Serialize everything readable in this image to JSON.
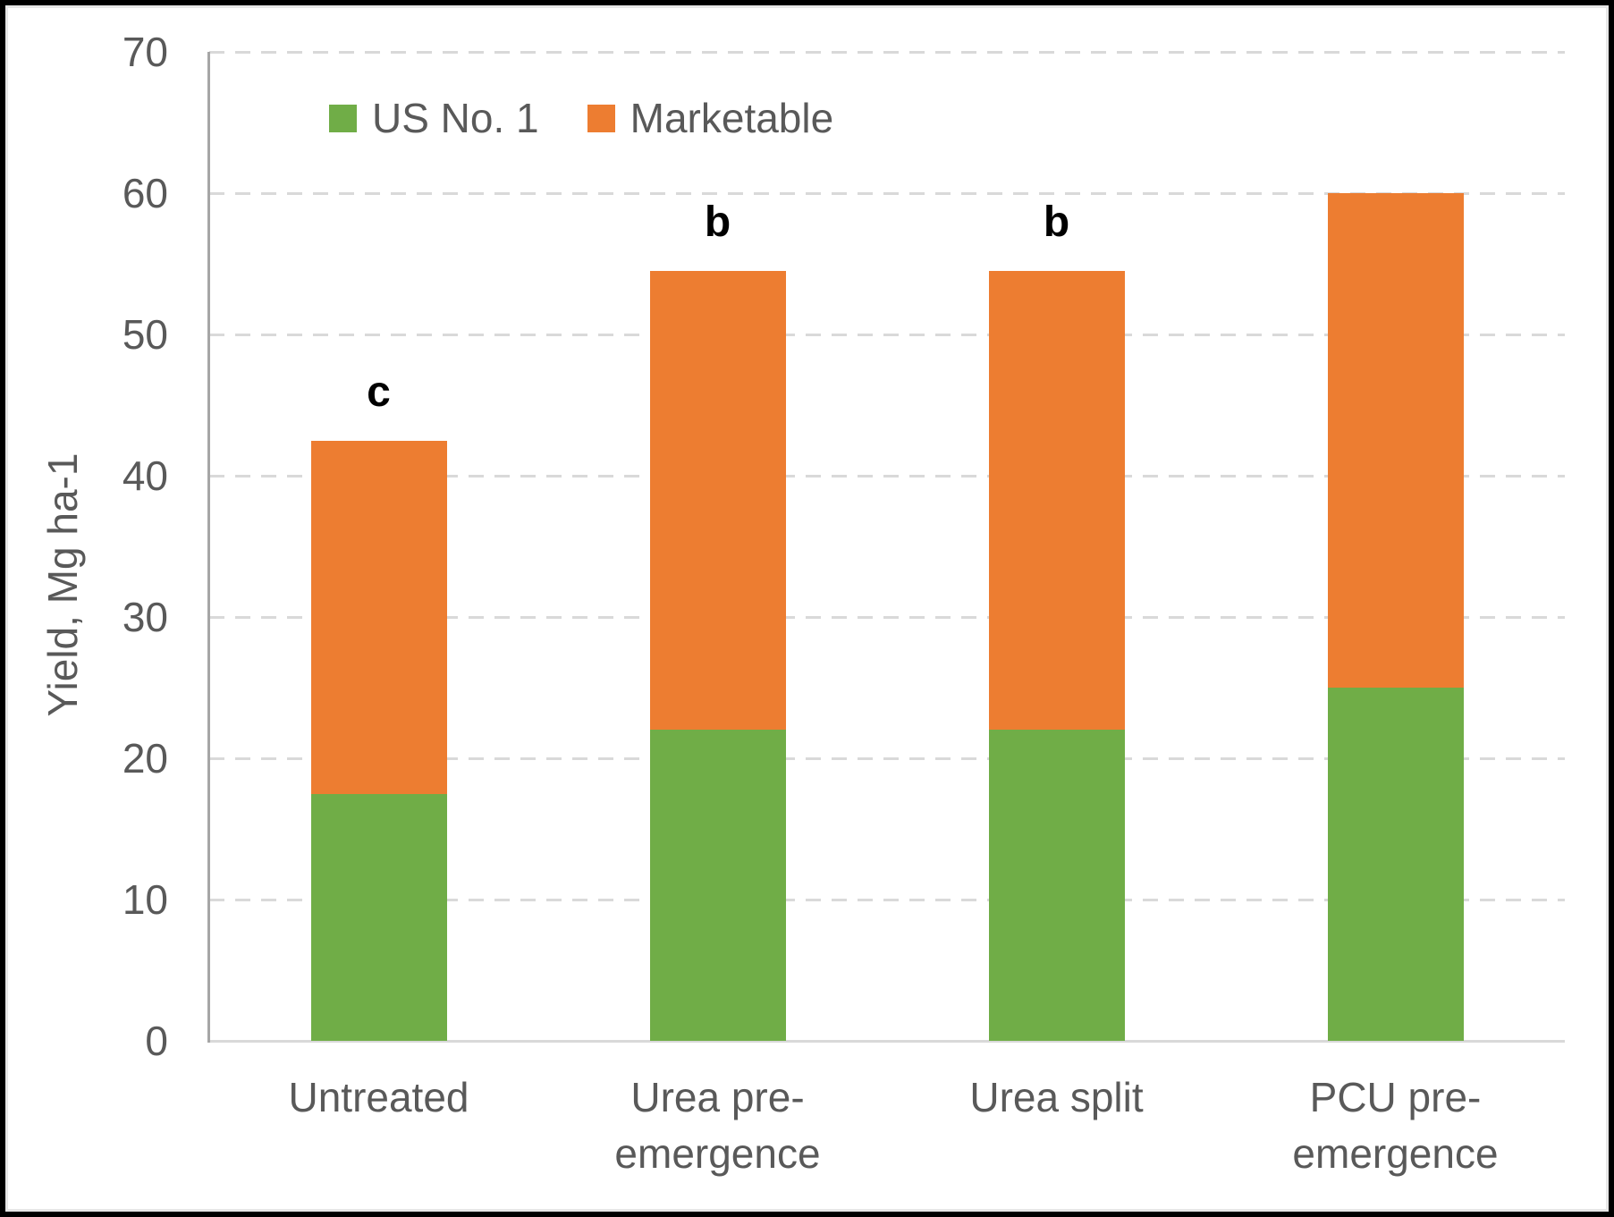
{
  "figure": {
    "type": "embedded-excel-chart",
    "background": "#ffffff",
    "frame_color": "#000000",
    "inner_frame_color": "#e7e7e7"
  },
  "legend": {
    "position": "top-left-of-plot",
    "entries": [
      {
        "label": "US No. 1",
        "color": "#70AD47"
      },
      {
        "label": "Marketable",
        "color": "#ED7D31"
      }
    ]
  },
  "y_axis": {
    "title": "Yield, Mg ha-1",
    "ticks": [
      0,
      10,
      20,
      30,
      40,
      50,
      60,
      70
    ],
    "range": [
      0,
      70
    ],
    "label_color": "#595959",
    "axis_line_color": "#a6a6a6",
    "gridline_color": "#d9d9d9",
    "gridline_style": "dashed"
  },
  "chart_data": {
    "type": "bar",
    "subtype": "stacked",
    "title": "",
    "xlabel": "",
    "ylabel": "Yield, Mg ha-1",
    "ylim": [
      0,
      70
    ],
    "grid": true,
    "categories": [
      "Untreated",
      "Urea pre-\nemergence",
      "Urea split",
      "PCU pre-\nemergence"
    ],
    "series": [
      {
        "name": "US No. 1",
        "color": "#70AD47",
        "segment_values": [
          17.5,
          22,
          22,
          25
        ]
      },
      {
        "name": "Marketable",
        "color": "#ED7D31",
        "segment_values": [
          25,
          32.5,
          32.5,
          35
        ]
      }
    ],
    "stack_totals": [
      42.5,
      54.5,
      54.5,
      60
    ],
    "significance_letters": [
      "c",
      "b",
      "b",
      ""
    ],
    "letter_color": "#000000"
  }
}
